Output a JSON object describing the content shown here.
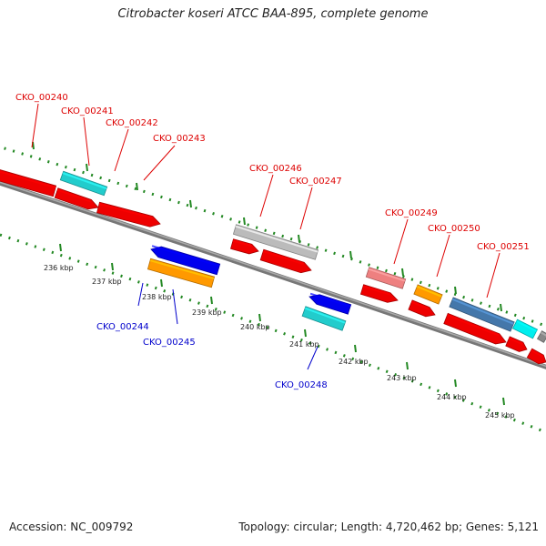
{
  "header": {
    "title": "Citrobacter koseri ATCC BAA-895, complete genome"
  },
  "footer": {
    "accession": "Accession: NC_009792",
    "summary": "Topology: circular; Length: 4,720,462 bp; Genes: 5,121"
  },
  "colors": {
    "forward_label": "#dd0000",
    "reverse_label": "#0000cc",
    "backbone": "#777777",
    "tick": "#228822"
  },
  "ticks": [
    "236 kbp",
    "237 kbp",
    "238 kbp",
    "239 kbp",
    "240 kbp",
    "241 kbp",
    "242 kbp",
    "243 kbp",
    "244 kbp",
    "245 kbp"
  ],
  "labels": [
    {
      "text": "CKO_00240",
      "strand": "forward"
    },
    {
      "text": "CKO_00241",
      "strand": "forward"
    },
    {
      "text": "CKO_00242",
      "strand": "forward"
    },
    {
      "text": "CKO_00243",
      "strand": "forward"
    },
    {
      "text": "CKO_00246",
      "strand": "forward"
    },
    {
      "text": "CKO_00247",
      "strand": "forward"
    },
    {
      "text": "CKO_00249",
      "strand": "forward"
    },
    {
      "text": "CKO_00250",
      "strand": "forward"
    },
    {
      "text": "CKO_00251",
      "strand": "forward"
    },
    {
      "text": "CKO_00244",
      "strand": "reverse"
    },
    {
      "text": "CKO_00245",
      "strand": "reverse"
    },
    {
      "text": "CKO_00248",
      "strand": "reverse"
    }
  ],
  "features": [
    {
      "name": "cds-forward",
      "color": "#ee0000"
    },
    {
      "name": "cds-forward",
      "color": "#ee0000"
    },
    {
      "name": "cds-forward",
      "color": "#ee0000"
    },
    {
      "name": "gene-forward",
      "color": "#22cccc"
    },
    {
      "name": "cds-forward",
      "color": "#ee0000"
    },
    {
      "name": "cds-forward",
      "color": "#ee0000"
    },
    {
      "name": "gene-forward",
      "color": "#bbbbbb"
    },
    {
      "name": "cds-forward",
      "color": "#ee0000"
    },
    {
      "name": "gene-forward",
      "color": "#ee8080"
    },
    {
      "name": "cds-forward",
      "color": "#ee0000"
    },
    {
      "name": "gene-forward",
      "color": "#ff9900"
    },
    {
      "name": "cds-forward",
      "color": "#ee0000"
    },
    {
      "name": "gene-forward",
      "color": "#4477aa"
    },
    {
      "name": "cds-forward",
      "color": "#ee0000"
    },
    {
      "name": "gene-forward",
      "color": "#00eeee"
    },
    {
      "name": "cds-forward",
      "color": "#ee0000"
    },
    {
      "name": "gene-forward",
      "color": "#888888"
    },
    {
      "name": "cds-reverse",
      "color": "#0000ee"
    },
    {
      "name": "gene-reverse",
      "color": "#ff9900"
    },
    {
      "name": "cds-reverse",
      "color": "#0000ee"
    },
    {
      "name": "gene-reverse",
      "color": "#22cccc"
    }
  ]
}
